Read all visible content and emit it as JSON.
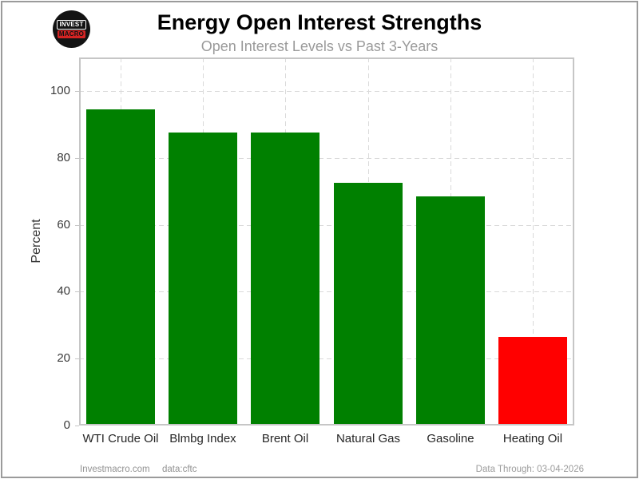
{
  "logo": {
    "line1": "INVEST",
    "line2": "MACRO",
    "bg_color": "#131313",
    "accent_color": "#d42323"
  },
  "chart_data": {
    "type": "bar",
    "title": "Energy Open Interest Strengths",
    "subtitle": "Open Interest Levels vs Past 3-Years",
    "xlabel": "",
    "ylabel": "Percent",
    "categories": [
      "WTI Crude Oil",
      "Blmbg Index",
      "Brent Oil",
      "Natural Gas",
      "Gasoline",
      "Heating Oil"
    ],
    "values": [
      94.5,
      87.5,
      87.5,
      72.5,
      68.5,
      26.5
    ],
    "bar_colors": [
      "#008000",
      "#008000",
      "#008000",
      "#008000",
      "#008000",
      "#ff0000"
    ],
    "positive_color": "#008000",
    "negative_color": "#ff0000",
    "yticks": [
      0,
      20,
      40,
      60,
      80,
      100
    ],
    "ylim": [
      0,
      110
    ],
    "grid": "dashed",
    "legend": "none"
  },
  "footer": {
    "site": "Investmacro.com",
    "source": "data:cftc",
    "data_through": "Data Through: 03-04-2026"
  }
}
